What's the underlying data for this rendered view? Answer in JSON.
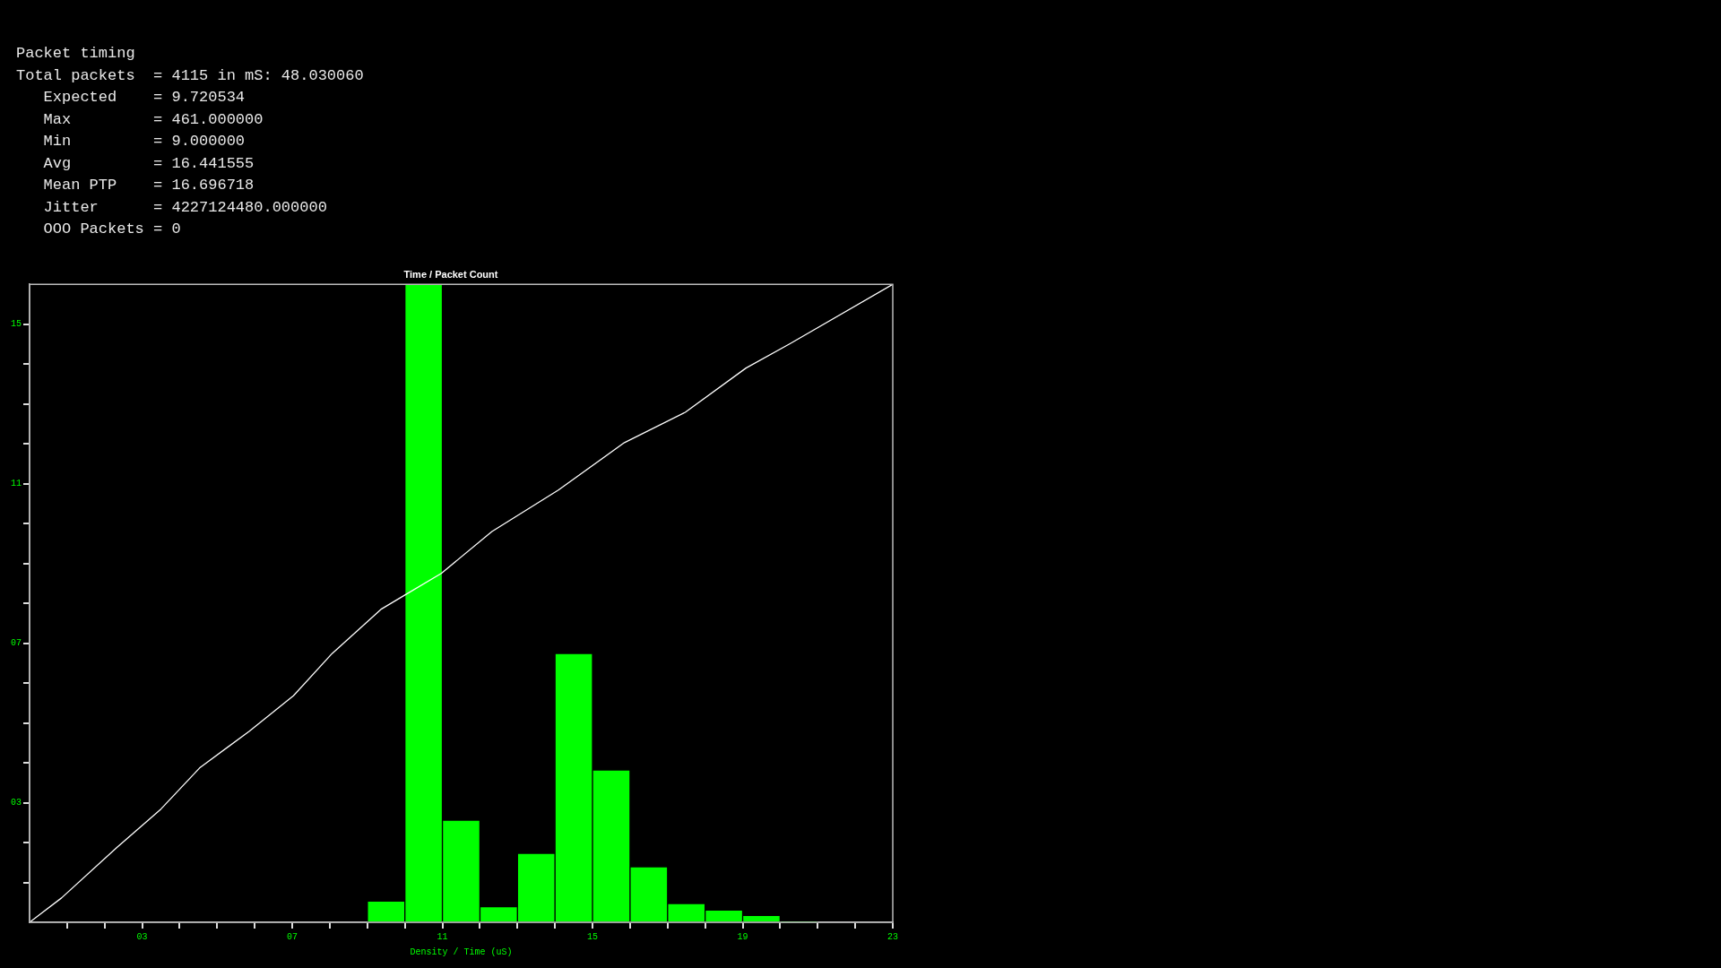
{
  "chart_data": {
    "type": "histogram",
    "title": "Time / Packet Count",
    "xlabel": "Density / Time (uS)",
    "annotations": [
      "Packet timing",
      "Total packets  = 4115 in mS: 48.030060",
      "   Expected    = 9.720534",
      "   Max         = 461.000000",
      "   Min         = 9.000000",
      "   Avg         = 16.441555",
      "   Mean PTP    = 16.696718",
      "   Jitter      = 4227124480.000000",
      "   OOO Packets = 0"
    ],
    "series": [
      {
        "color": "#00ff00",
        "bins": [
          9,
          10,
          11,
          12,
          13,
          14,
          15,
          16,
          17,
          18,
          19,
          20,
          21
        ],
        "values": [
          0.53,
          16,
          2.56,
          0.39,
          1.73,
          6.74,
          3.82,
          1.39,
          0.47,
          0.31,
          0.17,
          0.03
        ]
      },
      {
        "type": "line",
        "color": "#ffffff",
        "x": [
          0,
          0.85,
          2.32,
          3.5,
          4.53,
          5.85,
          7.03,
          8.06,
          9.38,
          9.97,
          10.97,
          12.32,
          14.09,
          15.85,
          17.47,
          19.09,
          20.26,
          23
        ],
        "values": [
          0,
          0.61,
          1.87,
          2.84,
          3.87,
          4.79,
          5.68,
          6.74,
          7.86,
          8.19,
          8.75,
          9.8,
          10.84,
          12.03,
          12.79,
          13.9,
          14.51,
          16
        ]
      }
    ],
    "xlim": [
      0,
      23
    ],
    "ylim": [
      0,
      16
    ],
    "xticks": [
      {
        "value": 1,
        "label": null
      },
      {
        "value": 2,
        "label": null
      },
      {
        "value": 3,
        "label": "03"
      },
      {
        "value": 4,
        "label": null
      },
      {
        "value": 5,
        "label": null
      },
      {
        "value": 6,
        "label": null
      },
      {
        "value": 7,
        "label": "07"
      },
      {
        "value": 8,
        "label": null
      },
      {
        "value": 9,
        "label": null
      },
      {
        "value": 10,
        "label": null
      },
      11,
      {
        "value": 12,
        "label": null
      },
      {
        "value": 13,
        "label": null
      },
      {
        "value": 14,
        "label": null
      },
      15,
      {
        "value": 16,
        "label": null
      },
      {
        "value": 17,
        "label": null
      },
      {
        "value": 18,
        "label": null
      },
      19,
      {
        "value": 20,
        "label": null
      },
      {
        "value": 21,
        "label": null
      },
      {
        "value": 22,
        "label": null
      },
      23
    ],
    "yticks": [
      {
        "value": 1,
        "label": null
      },
      {
        "value": 2,
        "label": null
      },
      {
        "value": 3,
        "label": "03"
      },
      {
        "value": 4,
        "label": null
      },
      {
        "value": 5,
        "label": null
      },
      {
        "value": 6,
        "label": null
      },
      {
        "value": 7,
        "label": "07"
      },
      {
        "value": 8,
        "label": null
      },
      {
        "value": 9,
        "label": null
      },
      {
        "value": 10,
        "label": null
      },
      11,
      {
        "value": 12,
        "label": null
      },
      {
        "value": 13,
        "label": null
      },
      {
        "value": 14,
        "label": null
      },
      15
    ],
    "grid": false,
    "legend": false
  }
}
